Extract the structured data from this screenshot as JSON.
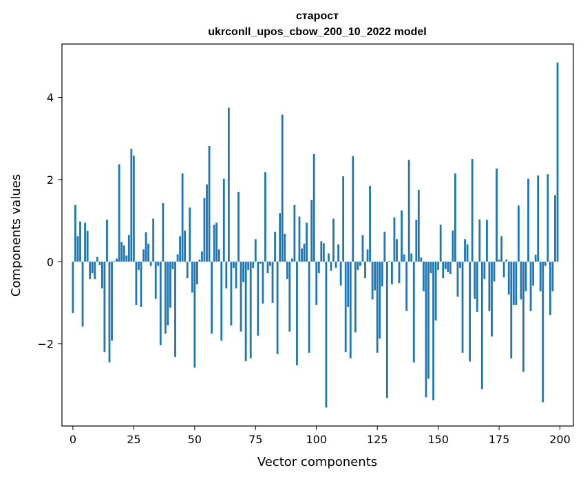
{
  "chart_data": {
    "type": "bar",
    "title_line1": "староcт",
    "title_line2": "ukrconll_upos_cbow_200_10_2022 model",
    "xlabel": "Vector components",
    "ylabel": "Components values",
    "xlim": [
      -4.5,
      205.5
    ],
    "ylim": [
      -4.0,
      5.3
    ],
    "xticks": [
      0,
      25,
      50,
      75,
      100,
      125,
      150,
      175,
      200
    ],
    "xtick_labels": [
      "0",
      "25",
      "50",
      "75",
      "100",
      "125",
      "150",
      "175",
      "200"
    ],
    "yticks": [
      -2,
      0,
      2,
      4
    ],
    "ytick_labels": [
      "−2",
      "0",
      "2",
      "4"
    ],
    "grid": false,
    "bar_color": "#1f77b4",
    "x": [
      0,
      1,
      2,
      3,
      4,
      5,
      6,
      7,
      8,
      9,
      10,
      11,
      12,
      13,
      14,
      15,
      16,
      17,
      18,
      19,
      20,
      21,
      22,
      23,
      24,
      25,
      26,
      27,
      28,
      29,
      30,
      31,
      32,
      33,
      34,
      35,
      36,
      37,
      38,
      39,
      40,
      41,
      42,
      43,
      44,
      45,
      46,
      47,
      48,
      49,
      50,
      51,
      52,
      53,
      54,
      55,
      56,
      57,
      58,
      59,
      60,
      61,
      62,
      63,
      64,
      65,
      66,
      67,
      68,
      69,
      70,
      71,
      72,
      73,
      74,
      75,
      76,
      77,
      78,
      79,
      80,
      81,
      82,
      83,
      84,
      85,
      86,
      87,
      88,
      89,
      90,
      91,
      92,
      93,
      94,
      95,
      96,
      97,
      98,
      99,
      100,
      101,
      102,
      103,
      104,
      105,
      106,
      107,
      108,
      109,
      110,
      111,
      112,
      113,
      114,
      115,
      116,
      117,
      118,
      119,
      120,
      121,
      122,
      123,
      124,
      125,
      126,
      127,
      128,
      129,
      130,
      131,
      132,
      133,
      134,
      135,
      136,
      137,
      138,
      139,
      140,
      141,
      142,
      143,
      144,
      145,
      146,
      147,
      148,
      149,
      150,
      151,
      152,
      153,
      154,
      155,
      156,
      157,
      158,
      159,
      160,
      161,
      162,
      163,
      164,
      165,
      166,
      167,
      168,
      169,
      170,
      171,
      172,
      173,
      174,
      175,
      176,
      177,
      178,
      179,
      180,
      181,
      182,
      183,
      184,
      185,
      186,
      187,
      188,
      189,
      190,
      191,
      192,
      193,
      194,
      195,
      196,
      197,
      198,
      199
    ],
    "values": [
      -1.25,
      1.38,
      0.62,
      0.98,
      -1.58,
      0.95,
      0.75,
      -0.42,
      -0.28,
      -0.42,
      0.12,
      -0.08,
      -0.65,
      -2.2,
      1.02,
      -2.45,
      -1.92,
      0.02,
      0.08,
      2.37,
      0.48,
      0.4,
      0.15,
      0.65,
      2.75,
      2.58,
      -1.05,
      -0.2,
      -1.1,
      0.3,
      0.72,
      0.44,
      -0.1,
      1.05,
      -0.9,
      -0.1,
      -2.03,
      1.43,
      -1.75,
      -1.55,
      -1.12,
      -0.18,
      -2.32,
      0.18,
      0.62,
      2.15,
      0.76,
      -0.4,
      1.32,
      -0.75,
      -2.58,
      -0.55,
      0.05,
      0.25,
      1.55,
      1.88,
      2.82,
      -1.75,
      0.9,
      0.95,
      0.3,
      -1.92,
      2.02,
      -0.65,
      3.75,
      -1.55,
      -0.15,
      -0.65,
      1.7,
      -1.7,
      -0.5,
      -2.42,
      -0.2,
      -2.35,
      -0.15,
      0.55,
      -1.8,
      -0.05,
      -1.02,
      2.18,
      -0.28,
      -0.1,
      -1.0,
      0.73,
      -2.25,
      1.18,
      3.58,
      0.68,
      -0.42,
      -1.7,
      0.08,
      1.38,
      -2.52,
      1.1,
      0.32,
      0.44,
      0.95,
      -2.22,
      1.5,
      2.62,
      -1.05,
      -0.28,
      0.5,
      0.45,
      -3.55,
      0.2,
      -0.22,
      1.05,
      -0.15,
      0.42,
      -0.58,
      2.08,
      -2.2,
      -1.1,
      -2.35,
      2.57,
      -1.72,
      -0.2,
      -0.1,
      0.65,
      -0.4,
      0.3,
      1.85,
      -0.92,
      -0.7,
      -2.22,
      -1.87,
      -0.6,
      0.73,
      -3.32,
      0.02,
      -0.55,
      1.08,
      0.55,
      -0.52,
      1.25,
      0.18,
      -1.2,
      2.48,
      0.2,
      -2.45,
      1.02,
      1.75,
      0.1,
      -0.72,
      -3.3,
      -2.85,
      -0.28,
      -3.37,
      -1.43,
      -0.2,
      0.9,
      -0.4,
      -0.18,
      -0.25,
      -0.3,
      0.76,
      2.15,
      -0.85,
      -0.15,
      -2.22,
      0.55,
      0.42,
      -2.43,
      2.5,
      -0.9,
      -1.22,
      1.03,
      -3.1,
      -0.42,
      1.02,
      -1.2,
      -1.82,
      -0.48,
      2.27,
      0.05,
      0.62,
      -0.38,
      0.05,
      -0.8,
      -2.35,
      -1.05,
      -1.05,
      1.37,
      -0.92,
      -2.68,
      -0.72,
      2.02,
      -1.2,
      -0.58,
      0.17,
      2.1,
      -0.72,
      -3.42,
      -0.1,
      2.13,
      -1.3,
      -0.72,
      1.62,
      4.85
    ]
  }
}
